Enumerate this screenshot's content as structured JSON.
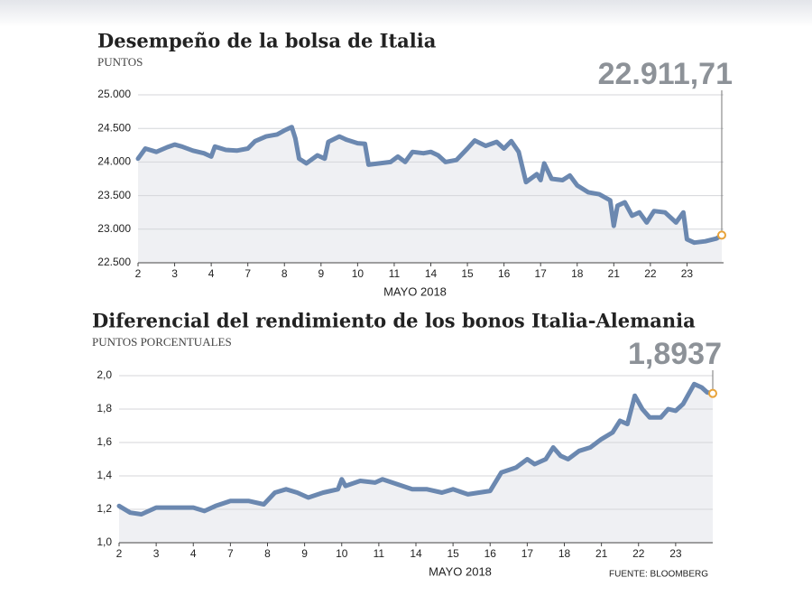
{
  "chart_data": [
    {
      "type": "line",
      "title": "Desempeño de la bolsa de Italia",
      "subtitle": "PUNTOS",
      "annotation": "22.911,71",
      "xlabel": "MAYO 2018",
      "xlim": [
        0,
        16
      ],
      "ylim": [
        22500,
        25000
      ],
      "grid": true,
      "xticks": [
        {
          "value": 0,
          "label": "2"
        },
        {
          "value": 1,
          "label": "3"
        },
        {
          "value": 2,
          "label": "4"
        },
        {
          "value": 3,
          "label": "7"
        },
        {
          "value": 4,
          "label": "8"
        },
        {
          "value": 5,
          "label": "9"
        },
        {
          "value": 6,
          "label": "10"
        },
        {
          "value": 7,
          "label": "11"
        },
        {
          "value": 8,
          "label": "14"
        },
        {
          "value": 9,
          "label": "15"
        },
        {
          "value": 10,
          "label": "16"
        },
        {
          "value": 11,
          "label": "17"
        },
        {
          "value": 12,
          "label": "18"
        },
        {
          "value": 13,
          "label": "21"
        },
        {
          "value": 14,
          "label": "22"
        },
        {
          "value": 15,
          "label": "23"
        }
      ],
      "yticks": [
        {
          "value": 22500,
          "label": "22.500"
        },
        {
          "value": 23000,
          "label": "23.000"
        },
        {
          "value": 23500,
          "label": "23.500"
        },
        {
          "value": 24000,
          "label": "24.000"
        },
        {
          "value": 24500,
          "label": "24.500"
        },
        {
          "value": 25000,
          "label": "25.000"
        }
      ],
      "series": [
        {
          "color": "#6b88b0",
          "x": [
            0,
            0.2,
            0.5,
            0.8,
            1.0,
            1.2,
            1.5,
            1.8,
            2.0,
            2.1,
            2.4,
            2.7,
            3.0,
            3.2,
            3.5,
            3.8,
            4.0,
            4.2,
            4.3,
            4.4,
            4.6,
            4.9,
            5.1,
            5.2,
            5.5,
            5.7,
            6.0,
            6.2,
            6.3,
            6.6,
            6.9,
            7.1,
            7.3,
            7.5,
            7.8,
            8.0,
            8.2,
            8.4,
            8.7,
            9.0,
            9.2,
            9.5,
            9.8,
            10.0,
            10.2,
            10.4,
            10.6,
            10.9,
            11.0,
            11.1,
            11.3,
            11.6,
            11.8,
            12.0,
            12.3,
            12.6,
            12.9,
            13.0,
            13.1,
            13.3,
            13.5,
            13.7,
            13.9,
            14.1,
            14.4,
            14.7,
            14.9,
            15.0,
            15.2,
            15.5,
            15.8,
            15.95
          ],
          "values": [
            24050,
            24200,
            24150,
            24220,
            24260,
            24230,
            24170,
            24130,
            24080,
            24230,
            24180,
            24170,
            24200,
            24310,
            24380,
            24410,
            24470,
            24520,
            24350,
            24050,
            23980,
            24100,
            24050,
            24300,
            24380,
            24330,
            24280,
            24270,
            23960,
            23980,
            24000,
            24080,
            24000,
            24150,
            24130,
            24150,
            24100,
            24000,
            24030,
            24200,
            24320,
            24240,
            24300,
            24200,
            24310,
            24150,
            23700,
            23820,
            23730,
            23980,
            23750,
            23730,
            23800,
            23650,
            23550,
            23520,
            23430,
            23050,
            23350,
            23400,
            23200,
            23250,
            23100,
            23270,
            23250,
            23100,
            23250,
            22850,
            22800,
            22820,
            22860,
            22911.71
          ]
        }
      ]
    },
    {
      "type": "line",
      "title": "Diferencial del rendimiento de los bonos Italia-Alemania",
      "subtitle": "PUNTOS PORCENTUALES",
      "annotation": "1,8937",
      "xlabel": "MAYO 2018",
      "xlim": [
        0,
        16
      ],
      "ylim": [
        1.0,
        2.0
      ],
      "grid": true,
      "xticks": [
        {
          "value": 0,
          "label": "2"
        },
        {
          "value": 1,
          "label": "3"
        },
        {
          "value": 2,
          "label": "4"
        },
        {
          "value": 3,
          "label": "7"
        },
        {
          "value": 4,
          "label": "8"
        },
        {
          "value": 5,
          "label": "9"
        },
        {
          "value": 6,
          "label": "10"
        },
        {
          "value": 7,
          "label": "11"
        },
        {
          "value": 8,
          "label": "14"
        },
        {
          "value": 9,
          "label": "15"
        },
        {
          "value": 10,
          "label": "16"
        },
        {
          "value": 11,
          "label": "17"
        },
        {
          "value": 12,
          "label": "18"
        },
        {
          "value": 13,
          "label": "21"
        },
        {
          "value": 14,
          "label": "22"
        },
        {
          "value": 15,
          "label": "23"
        }
      ],
      "yticks": [
        {
          "value": 1.0,
          "label": "1,0"
        },
        {
          "value": 1.2,
          "label": "1,2"
        },
        {
          "value": 1.4,
          "label": "1,4"
        },
        {
          "value": 1.6,
          "label": "1,6"
        },
        {
          "value": 1.8,
          "label": "1,8"
        },
        {
          "value": 2.0,
          "label": "2,0"
        }
      ],
      "series": [
        {
          "color": "#6b88b0",
          "x": [
            0,
            0.3,
            0.6,
            1,
            1.5,
            2,
            2.3,
            2.6,
            3,
            3.5,
            3.9,
            4.2,
            4.5,
            4.8,
            5.1,
            5.5,
            5.9,
            6.0,
            6.1,
            6.5,
            6.9,
            7.1,
            7.5,
            7.9,
            8.3,
            8.7,
            9.0,
            9.4,
            9.7,
            10.0,
            10.3,
            10.7,
            11.0,
            11.2,
            11.5,
            11.7,
            11.9,
            12.1,
            12.4,
            12.7,
            13.0,
            13.3,
            13.5,
            13.7,
            13.9,
            14.1,
            14.3,
            14.6,
            14.8,
            15.0,
            15.2,
            15.5,
            15.7,
            15.85,
            16.0
          ],
          "values": [
            1.22,
            1.18,
            1.17,
            1.21,
            1.21,
            1.21,
            1.19,
            1.22,
            1.25,
            1.25,
            1.23,
            1.3,
            1.32,
            1.3,
            1.27,
            1.3,
            1.32,
            1.38,
            1.34,
            1.37,
            1.36,
            1.38,
            1.35,
            1.32,
            1.32,
            1.3,
            1.32,
            1.29,
            1.3,
            1.31,
            1.42,
            1.45,
            1.5,
            1.47,
            1.5,
            1.57,
            1.52,
            1.5,
            1.55,
            1.57,
            1.62,
            1.66,
            1.73,
            1.71,
            1.88,
            1.8,
            1.75,
            1.75,
            1.8,
            1.79,
            1.83,
            1.95,
            1.93,
            1.9,
            1.8937
          ]
        }
      ]
    }
  ],
  "source": "FUENTE: BLOOMBERG"
}
